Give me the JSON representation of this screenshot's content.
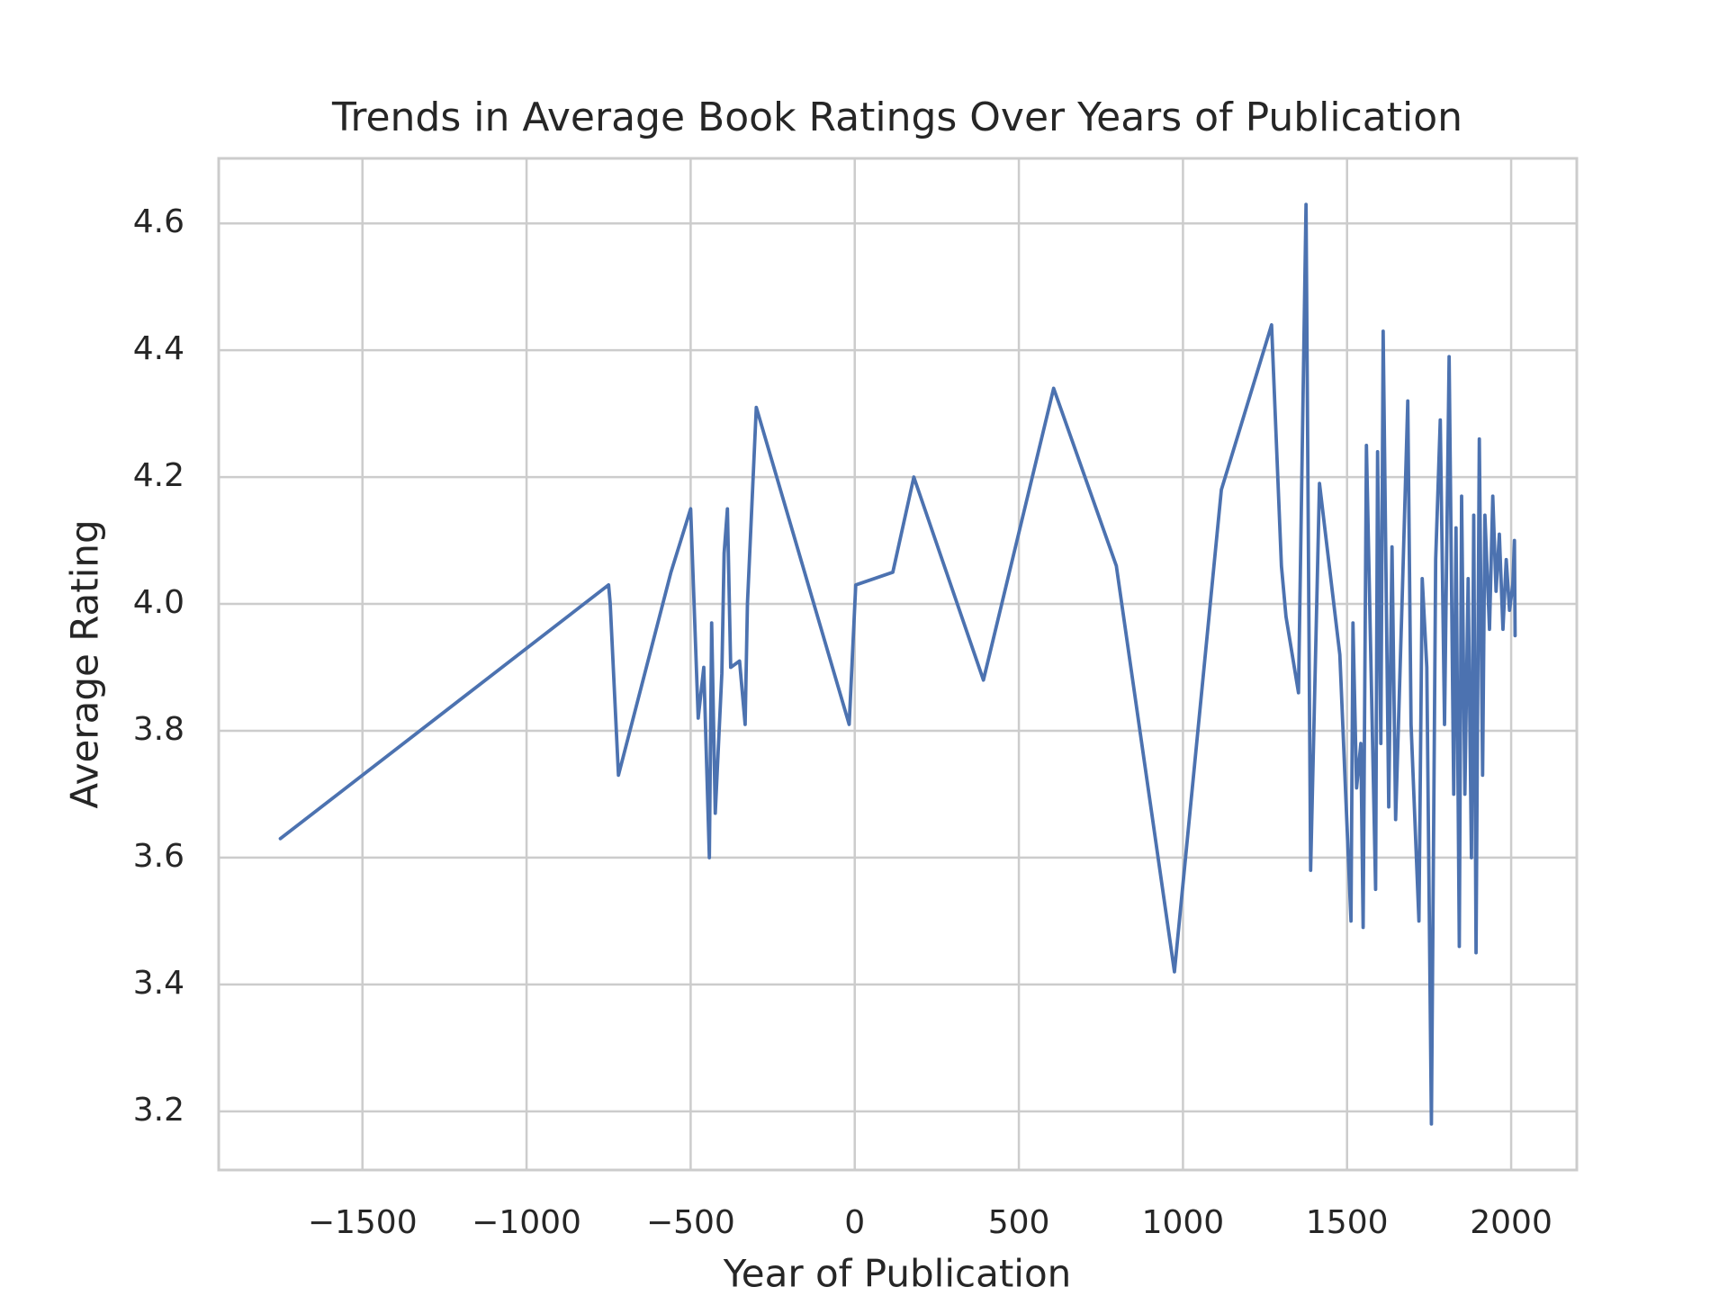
{
  "chart_data": {
    "type": "line",
    "title": "Trends in Average Book Ratings Over Years of Publication",
    "x_label": "Year of Publication",
    "y_label": "Average Rating",
    "x": [
      -1750,
      -750,
      -745,
      -720,
      -560,
      -500,
      -477,
      -460,
      -443,
      -436,
      -425,
      -405,
      -398,
      -388,
      -378,
      -351,
      -334,
      -327,
      -300,
      -17,
      3,
      116,
      180,
      392,
      606,
      797,
      974,
      1117,
      1270,
      1300,
      1314,
      1352,
      1375,
      1389,
      1416,
      1478,
      1512,
      1518,
      1529,
      1542,
      1549,
      1559,
      1587,
      1593,
      1603,
      1610,
      1627,
      1637,
      1648,
      1668,
      1685,
      1695,
      1719,
      1729,
      1743,
      1757,
      1770,
      1784,
      1797,
      1811,
      1825,
      1832,
      1842,
      1849,
      1859,
      1869,
      1879,
      1886,
      1893,
      1903,
      1913,
      1920,
      1934,
      1944,
      1954,
      1964,
      1975,
      1985,
      1995,
      2005,
      2010,
      2012
    ],
    "series": [
      {
        "name": "Average Rating",
        "color": "#4c72b0",
        "values": [
          3.63,
          4.03,
          4.0,
          3.73,
          4.05,
          4.15,
          3.82,
          3.9,
          3.6,
          3.97,
          3.67,
          3.89,
          4.08,
          4.15,
          3.9,
          3.91,
          3.81,
          4.0,
          4.31,
          3.81,
          4.03,
          4.05,
          4.2,
          3.88,
          4.34,
          4.06,
          3.42,
          4.18,
          4.44,
          4.06,
          3.98,
          3.86,
          4.63,
          3.58,
          4.19,
          3.92,
          3.5,
          3.97,
          3.71,
          3.78,
          3.49,
          4.25,
          3.55,
          4.24,
          3.78,
          4.43,
          3.68,
          4.09,
          3.66,
          4.01,
          4.32,
          3.81,
          3.5,
          4.04,
          3.9,
          3.18,
          4.07,
          4.29,
          3.81,
          4.39,
          3.7,
          4.12,
          3.46,
          4.17,
          3.7,
          4.04,
          3.6,
          4.14,
          3.45,
          4.26,
          3.73,
          4.14,
          3.96,
          4.17,
          4.02,
          4.11,
          3.96,
          4.07,
          3.99,
          4.03,
          4.1,
          3.95
        ]
      }
    ],
    "xlim": [
      -1938,
      2200
    ],
    "xticks": [
      {
        "value": -1500,
        "label": "−1500"
      },
      {
        "value": -1000,
        "label": "−1000"
      },
      {
        "value": -500,
        "label": "−500"
      },
      0,
      500,
      1000,
      1500,
      2000
    ],
    "ylim": [
      3.1075,
      4.7025
    ],
    "yticks": [
      3.2,
      3.4,
      3.6,
      3.8,
      {
        "value": 4,
        "label": "4.0"
      },
      4.2,
      4.4,
      4.6
    ],
    "grid": true
  }
}
